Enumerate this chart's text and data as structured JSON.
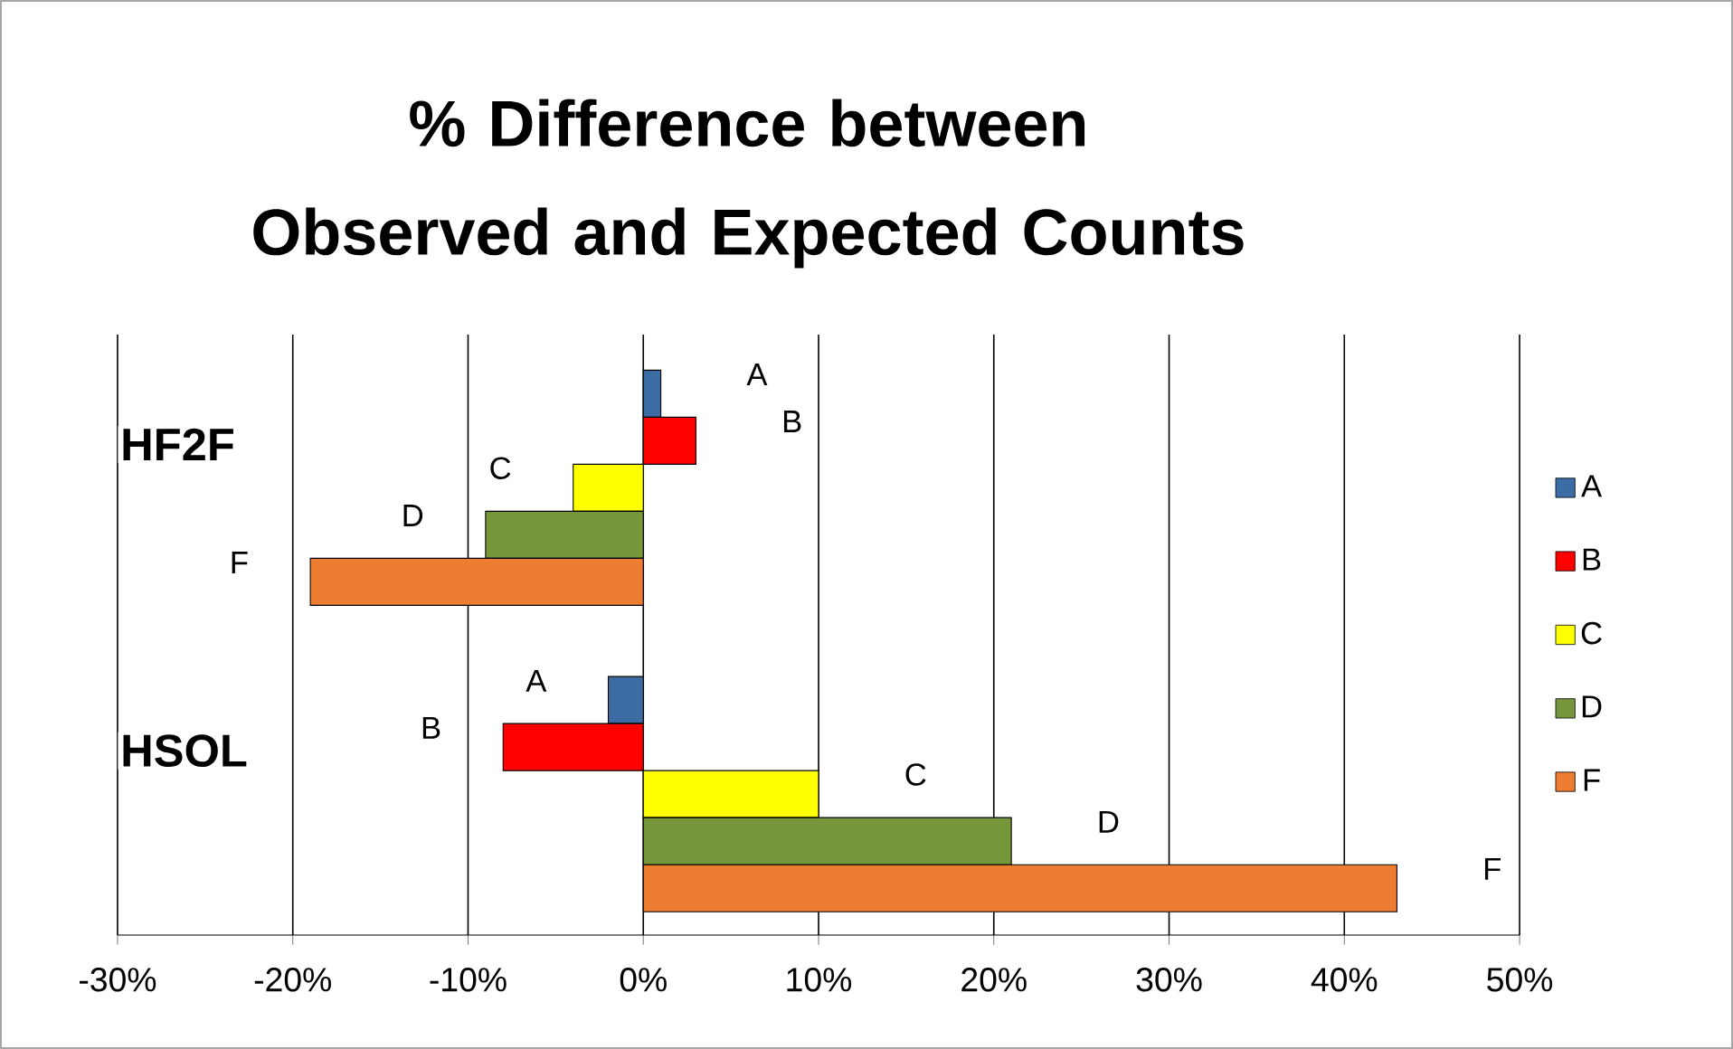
{
  "chart_data": {
    "type": "bar",
    "orientation": "horizontal",
    "title": "% Difference between Observed and Expected Counts",
    "categories": [
      "HF2F",
      "HSOL"
    ],
    "series": [
      {
        "name": "A",
        "color": "#3c6ca4",
        "values": [
          1,
          -2
        ]
      },
      {
        "name": "B",
        "color": "#ff0000",
        "values": [
          3,
          -8
        ]
      },
      {
        "name": "C",
        "color": "#ffff00",
        "values": [
          -4,
          10
        ]
      },
      {
        "name": "D",
        "color": "#77973d",
        "values": [
          -9,
          21
        ]
      },
      {
        "name": "F",
        "color": "#ed7d31",
        "values": [
          -19,
          43
        ]
      }
    ],
    "xlim": [
      -30,
      50
    ],
    "xticks": [
      {
        "value": -30,
        "label": "-30%"
      },
      {
        "value": -20,
        "label": "-20%"
      },
      {
        "value": -10,
        "label": "-10%"
      },
      {
        "value": 0,
        "label": "0%"
      },
      {
        "value": 10,
        "label": "10%"
      },
      {
        "value": 20,
        "label": "20%"
      },
      {
        "value": 30,
        "label": "30%"
      },
      {
        "value": 40,
        "label": "40%"
      },
      {
        "value": 50,
        "label": "50%"
      }
    ],
    "grid": "x",
    "legend": "right"
  }
}
